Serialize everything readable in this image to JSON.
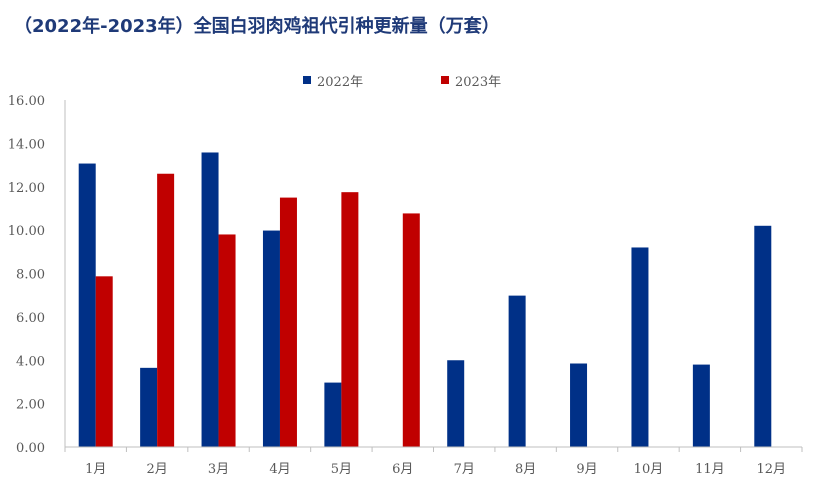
{
  "title": "（2022年-2023年）全国白羽肉鸡祖代引种更新量（万套）",
  "colors": {
    "2022": "#003087",
    "2023": "#c00000"
  },
  "chart_data": {
    "type": "bar",
    "title": "（2022年-2023年）全国白羽肉鸡祖代引种更新量（万套）",
    "categories": [
      "1月",
      "2月",
      "3月",
      "4月",
      "5月",
      "6月",
      "7月",
      "8月",
      "9月",
      "10月",
      "11月",
      "12月"
    ],
    "series": [
      {
        "name": "2022年",
        "values": [
          13.07,
          3.65,
          13.58,
          9.98,
          2.97,
          null,
          4.0,
          6.98,
          3.85,
          9.2,
          3.8,
          10.2
        ]
      },
      {
        "name": "2023年",
        "values": [
          7.87,
          12.6,
          9.8,
          11.5,
          11.75,
          10.77,
          null,
          null,
          null,
          null,
          null,
          null
        ]
      }
    ],
    "ylim": [
      0,
      16
    ],
    "yticks": [
      "0.00",
      "2.00",
      "4.00",
      "6.00",
      "8.00",
      "10.00",
      "12.00",
      "14.00",
      "16.00"
    ],
    "ytick_values": [
      0,
      2,
      4,
      6,
      8,
      10,
      12,
      14,
      16
    ],
    "legend_position": "top",
    "grid": false
  }
}
